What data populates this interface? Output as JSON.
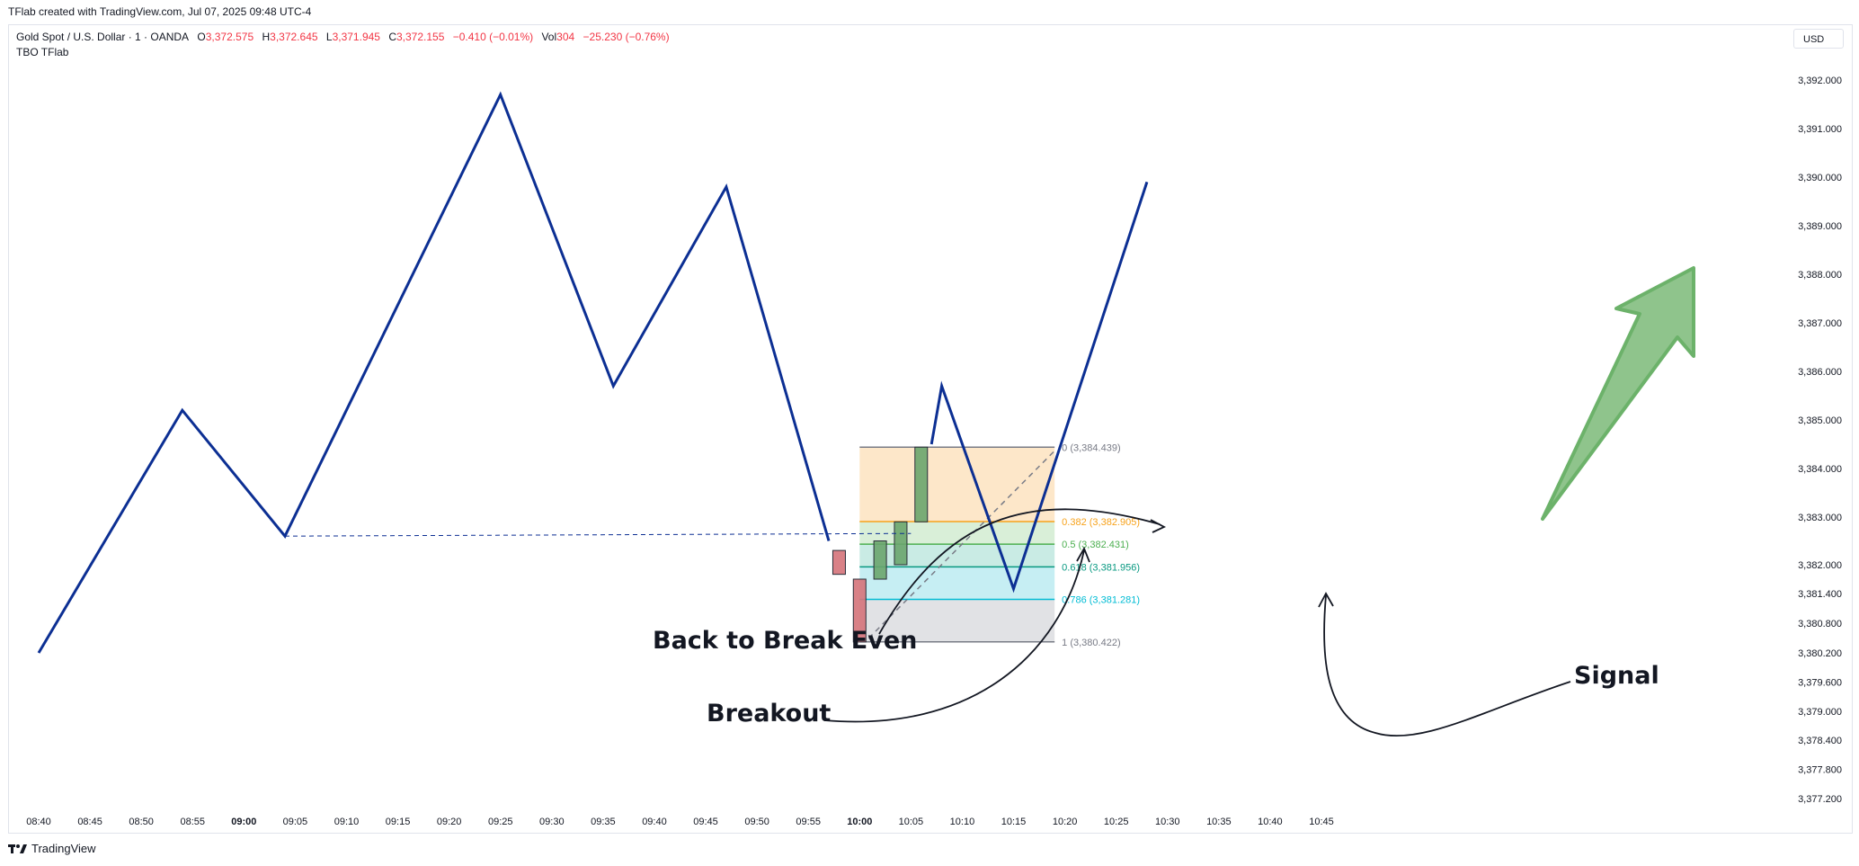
{
  "header": {
    "credit": "TFlab created with TradingView.com, Jul 07, 2025 09:48 UTC-4"
  },
  "legend": {
    "symbol": "Gold Spot / U.S. Dollar · 1 · OANDA",
    "open_label": "O",
    "open": "3,372.575",
    "high_label": "H",
    "high": "3,372.645",
    "low_label": "L",
    "low": "3,371.945",
    "close_label": "C",
    "close": "3,372.155",
    "change": "−0.410 (−0.01%)",
    "vol_label": "Vol",
    "vol": "304",
    "vol_change": "−25.230 (−0.76%)",
    "indicator": "TBO TFlab"
  },
  "currency": "USD",
  "footer": {
    "brand": "TradingView"
  },
  "colors": {
    "line": "#0c2f93",
    "fib_top": "#fde7c9",
    "fib_382": "#d9efd8",
    "fib_50": "#c9ebe4",
    "fib_618": "#c6eef3",
    "fib_786": "#e1e2e5",
    "fib_line_0": "#787b86",
    "fib_line_382": "#f7a21b",
    "fib_line_50": "#4caf50",
    "fib_line_618": "#089981",
    "fib_line_786": "#00bcd4",
    "fib_line_1": "#787b86",
    "arrow_fill": "#8fc48c",
    "arrow_stroke": "#6cb26a",
    "candle_green": "#6aa56d",
    "candle_red": "#d5737a"
  },
  "chart_data": {
    "type": "line",
    "title": "",
    "xlabel": "",
    "ylabel": "",
    "x_ticks": [
      "08:40",
      "08:45",
      "08:50",
      "08:55",
      "09:00",
      "09:05",
      "09:10",
      "09:15",
      "09:20",
      "09:25",
      "09:30",
      "09:35",
      "09:40",
      "09:45",
      "09:50",
      "09:55",
      "10:00",
      "10:05",
      "10:10",
      "10:15",
      "10:20",
      "10:25",
      "10:30",
      "10:35",
      "10:40",
      "10:45"
    ],
    "y_ticks": [
      "3,392.000",
      "3,391.000",
      "3,390.000",
      "3,389.000",
      "3,388.000",
      "3,387.000",
      "3,386.000",
      "3,385.000",
      "3,384.000",
      "3,383.000",
      "3,382.000",
      "3,381.400",
      "3,380.800",
      "3,380.200",
      "3,379.600",
      "3,379.000",
      "3,378.400",
      "3,377.800",
      "3,377.200"
    ],
    "series": [
      {
        "name": "",
        "points": [
          {
            "t": "08:40",
            "v": 3380.2
          },
          {
            "t": "08:54",
            "v": 3385.2
          },
          {
            "t": "09:04",
            "v": 3382.6
          },
          {
            "t": "09:25",
            "v": 3391.7
          },
          {
            "t": "09:36",
            "v": 3385.7
          },
          {
            "t": "09:47",
            "v": 3389.8
          },
          {
            "t": "09:57",
            "v": 3382.5
          }
        ]
      },
      {
        "name": "",
        "points": [
          {
            "t": "10:07",
            "v": 3384.5
          },
          {
            "t": "10:08",
            "v": 3385.7
          },
          {
            "t": "10:15",
            "v": 3381.5
          },
          {
            "t": "10:28",
            "v": 3389.9
          }
        ]
      }
    ],
    "breakout_level": 3382.6,
    "candles": [
      {
        "t": "09:58",
        "open": 3382.3,
        "close": 3381.8,
        "dir": "down"
      },
      {
        "t": "10:00",
        "open": 3381.7,
        "close": 3380.42,
        "dir": "down"
      },
      {
        "t": "10:02",
        "open": 3381.7,
        "close": 3382.5,
        "dir": "up"
      },
      {
        "t": "10:04",
        "open": 3382.0,
        "close": 3382.9,
        "dir": "up"
      },
      {
        "t": "10:06",
        "open": 3382.9,
        "close": 3384.44,
        "dir": "up"
      }
    ],
    "fibonacci": [
      {
        "ratio": "0",
        "value": 3384.439,
        "label": "0 (3,384.439)"
      },
      {
        "ratio": "0.382",
        "value": 3382.905,
        "label": "0.382 (3,382.905)"
      },
      {
        "ratio": "0.5",
        "value": 3382.431,
        "label": "0.5 (3,382.431)"
      },
      {
        "ratio": "0.618",
        "value": 3381.956,
        "label": "0.618 (3,381.956)"
      },
      {
        "ratio": "0.786",
        "value": 3381.281,
        "label": "0.786 (3,381.281)"
      },
      {
        "ratio": "1",
        "value": 3380.422,
        "label": "1 (3,380.422)"
      }
    ],
    "annotations": [
      {
        "text": "Back to Break Even"
      },
      {
        "text": "Breakout"
      },
      {
        "text": "Signal"
      }
    ]
  }
}
